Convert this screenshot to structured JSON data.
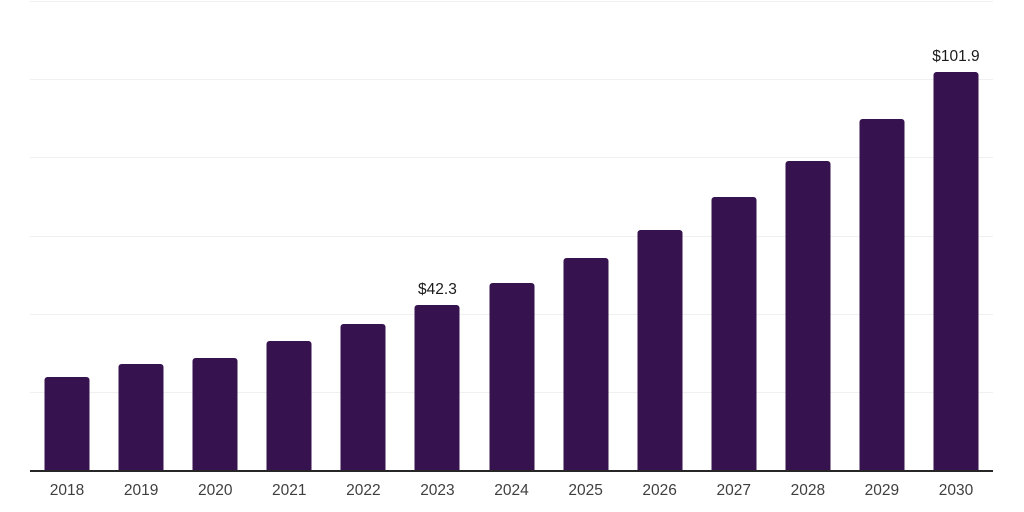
{
  "chart_data": {
    "type": "bar",
    "title": "",
    "xlabel": "",
    "ylabel": "",
    "categories": [
      "2018",
      "2019",
      "2020",
      "2021",
      "2022",
      "2023",
      "2024",
      "2025",
      "2026",
      "2027",
      "2028",
      "2029",
      "2030"
    ],
    "values": [
      23.8,
      27.1,
      28.7,
      33.0,
      37.3,
      42.3,
      47.9,
      54.3,
      61.5,
      69.8,
      79.0,
      89.8,
      101.9
    ],
    "value_labels": [
      "",
      "",
      "",
      "",
      "",
      "$42.3",
      "",
      "",
      "",
      "",
      "",
      "",
      "$101.9"
    ],
    "ylim": [
      0,
      120
    ],
    "gridline_step": 20,
    "grid": true,
    "legend": "none",
    "colors": {
      "bar": "#36124e",
      "gridline": "#f0f0f1",
      "axis_line": "#262626",
      "tick_label": "#3f3f3f",
      "value_label": "#1a1a1a",
      "background": "#ffffff"
    }
  }
}
